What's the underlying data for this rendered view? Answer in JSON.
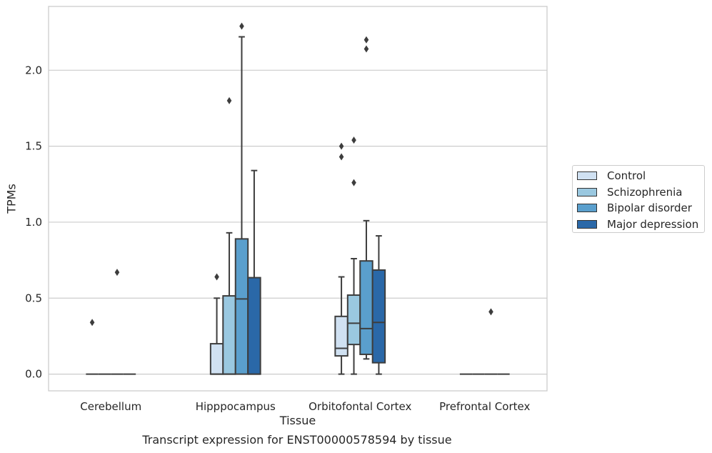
{
  "chart_data": {
    "type": "box",
    "title": "",
    "caption": "Transcript expression for ENST00000578594 by tissue",
    "xlabel": "Tissue",
    "ylabel": "TPMs",
    "ylim": [
      -0.11,
      2.42
    ],
    "yticks": [
      0.0,
      0.5,
      1.0,
      1.5,
      2.0
    ],
    "ytick_labels": [
      "0.0",
      "0.5",
      "1.0",
      "1.5",
      "2.0"
    ],
    "grid": true,
    "legend_position": "right",
    "categories": [
      "Cerebellum",
      "Hipppocampus",
      "Orbitofontal Cortex",
      "Prefrontal Cortex"
    ],
    "series": [
      {
        "name": "Control",
        "color": "#d0e1f2",
        "boxes": [
          {
            "min": 0,
            "q1": 0,
            "median": 0,
            "q3": 0,
            "max": 0,
            "outliers": [
              0.34
            ]
          },
          {
            "min": 0,
            "q1": 0,
            "median": 0,
            "q3": 0.2,
            "max": 0.5,
            "outliers": [
              0.64
            ]
          },
          {
            "min": 0,
            "q1": 0.12,
            "median": 0.17,
            "q3": 0.38,
            "max": 0.64,
            "outliers": [
              1.43,
              1.5
            ]
          },
          {
            "min": 0,
            "q1": 0,
            "median": 0,
            "q3": 0,
            "max": 0,
            "outliers": []
          }
        ]
      },
      {
        "name": "Schizophrenia",
        "color": "#9ac8e0",
        "boxes": [
          {
            "min": 0,
            "q1": 0,
            "median": 0,
            "q3": 0,
            "max": 0,
            "outliers": []
          },
          {
            "min": 0,
            "q1": 0,
            "median": 0,
            "q3": 0.515,
            "max": 0.93,
            "outliers": [
              1.8
            ]
          },
          {
            "min": 0,
            "q1": 0.195,
            "median": 0.335,
            "q3": 0.52,
            "max": 0.76,
            "outliers": [
              1.26,
              1.54
            ]
          },
          {
            "min": 0,
            "q1": 0,
            "median": 0,
            "q3": 0,
            "max": 0,
            "outliers": []
          }
        ]
      },
      {
        "name": "Bipolar disorder",
        "color": "#5a9fcd",
        "boxes": [
          {
            "min": 0,
            "q1": 0,
            "median": 0,
            "q3": 0,
            "max": 0,
            "outliers": [
              0.67
            ]
          },
          {
            "min": 0,
            "q1": 0,
            "median": 0.495,
            "q3": 0.89,
            "max": 2.22,
            "outliers": [
              2.29
            ]
          },
          {
            "min": 0.1,
            "q1": 0.13,
            "median": 0.3,
            "q3": 0.745,
            "max": 1.01,
            "outliers": [
              2.14,
              2.2
            ]
          },
          {
            "min": 0,
            "q1": 0,
            "median": 0,
            "q3": 0,
            "max": 0,
            "outliers": [
              0.41
            ]
          }
        ]
      },
      {
        "name": "Major depression",
        "color": "#2a68a8",
        "boxes": [
          {
            "min": 0,
            "q1": 0,
            "median": 0,
            "q3": 0,
            "max": 0,
            "outliers": []
          },
          {
            "min": 0,
            "q1": 0,
            "median": 0,
            "q3": 0.635,
            "max": 1.34,
            "outliers": []
          },
          {
            "min": 0,
            "q1": 0.075,
            "median": 0.34,
            "q3": 0.685,
            "max": 0.91,
            "outliers": []
          },
          {
            "min": 0,
            "q1": 0,
            "median": 0,
            "q3": 0,
            "max": 0,
            "outliers": []
          }
        ]
      }
    ]
  }
}
